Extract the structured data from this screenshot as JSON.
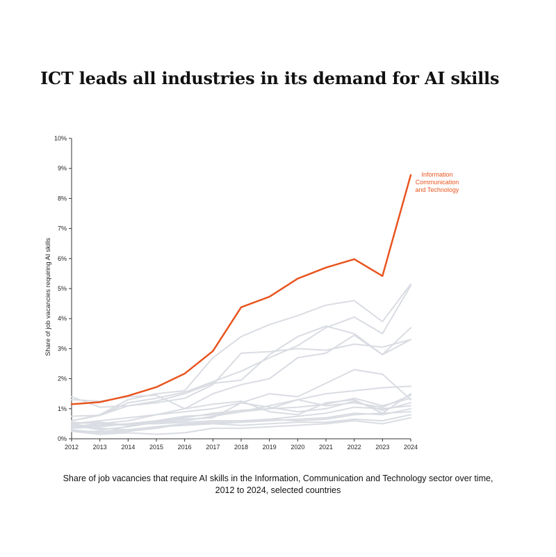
{
  "headline": "ICT leads all industries in its demand for AI skills",
  "caption": "Share of job vacancies that require AI skills in the Information, Communication and Technology sector over time, 2012 to 2024, selected countries",
  "colors": {
    "highlight": "#e8541e",
    "other": "#d9dce2",
    "axis": "#333333"
  },
  "chart_data": {
    "type": "line",
    "title": "",
    "xlabel": "",
    "ylabel": "Share of job vacancies requiring AI skills",
    "x": [
      2012,
      2013,
      2014,
      2015,
      2016,
      2017,
      2018,
      2019,
      2020,
      2021,
      2022,
      2023,
      2024
    ],
    "ylim": [
      0,
      10
    ],
    "yticks": [
      "0%",
      "1%",
      "2%",
      "3%",
      "4%",
      "5%",
      "6%",
      "7%",
      "8%",
      "9%",
      "10%"
    ],
    "grid": false,
    "highlight": {
      "name": "Information Communication and Technology",
      "label_lines": [
        "Information",
        "Communication",
        "and Technology"
      ],
      "values": [
        1.15,
        1.22,
        1.43,
        1.72,
        2.17,
        2.92,
        4.38,
        4.73,
        5.33,
        5.7,
        5.98,
        5.42,
        8.78
      ]
    },
    "series": [
      {
        "values": [
          0.6,
          0.8,
          1.3,
          1.5,
          1.6,
          2.7,
          3.4,
          3.8,
          4.1,
          4.45,
          4.6,
          3.9,
          5.15
        ]
      },
      {
        "values": [
          0.75,
          0.78,
          1.2,
          1.35,
          1.55,
          1.9,
          2.25,
          2.7,
          3.1,
          3.7,
          4.05,
          3.5,
          5.1
        ]
      },
      {
        "values": [
          0.6,
          0.78,
          1.1,
          1.25,
          1.5,
          1.85,
          1.95,
          2.8,
          3.4,
          3.75,
          3.5,
          2.8,
          3.7
        ]
      },
      {
        "values": [
          1.4,
          1.05,
          1.1,
          1.2,
          1.35,
          1.8,
          2.85,
          2.9,
          3.0,
          2.95,
          3.15,
          3.05,
          3.3
        ]
      },
      {
        "values": [
          0.4,
          0.5,
          0.6,
          0.8,
          1.0,
          1.5,
          1.8,
          2.0,
          2.7,
          2.85,
          3.45,
          2.8,
          3.3
        ]
      },
      {
        "values": [
          0.5,
          0.6,
          0.7,
          0.8,
          0.9,
          1.0,
          1.2,
          1.5,
          1.4,
          1.85,
          2.3,
          2.15,
          1.3
        ]
      },
      {
        "values": [
          0.5,
          0.55,
          0.45,
          0.55,
          0.6,
          0.75,
          0.9,
          1.0,
          1.3,
          1.5,
          1.6,
          1.7,
          1.75
        ]
      },
      {
        "values": [
          1.3,
          1.25,
          1.4,
          1.45,
          1.0,
          1.15,
          1.25,
          0.9,
          0.8,
          1.2,
          1.3,
          0.85,
          1.5
        ]
      },
      {
        "values": [
          0.55,
          0.5,
          0.45,
          0.6,
          0.75,
          0.8,
          0.9,
          1.1,
          1.3,
          1.1,
          1.2,
          1.05,
          1.45
        ]
      },
      {
        "values": [
          0.45,
          0.3,
          0.4,
          0.55,
          0.7,
          0.85,
          0.95,
          1.0,
          1.05,
          1.15,
          1.35,
          1.1,
          1.35
        ]
      },
      {
        "values": [
          0.35,
          0.4,
          0.5,
          0.6,
          0.65,
          0.7,
          1.2,
          1.05,
          0.9,
          1.0,
          1.25,
          0.95,
          1.2
        ]
      },
      {
        "values": [
          0.3,
          0.2,
          0.25,
          0.35,
          0.5,
          0.55,
          0.55,
          0.65,
          0.75,
          0.85,
          1.05,
          1.0,
          1.1
        ]
      },
      {
        "values": [
          0.25,
          0.25,
          0.3,
          0.4,
          0.45,
          0.5,
          0.55,
          0.6,
          0.65,
          0.7,
          0.85,
          0.8,
          1.0
        ]
      },
      {
        "values": [
          0.4,
          0.45,
          0.5,
          0.5,
          0.55,
          0.6,
          0.6,
          0.65,
          0.6,
          0.65,
          0.8,
          0.85,
          0.9
        ]
      },
      {
        "values": [
          0.25,
          0.15,
          0.2,
          0.15,
          0.2,
          0.35,
          0.35,
          0.4,
          0.45,
          0.5,
          0.6,
          0.5,
          0.7
        ]
      },
      {
        "values": [
          0.5,
          0.35,
          0.3,
          0.4,
          0.5,
          0.5,
          0.45,
          0.5,
          0.55,
          0.55,
          0.65,
          0.6,
          0.8
        ]
      }
    ]
  }
}
